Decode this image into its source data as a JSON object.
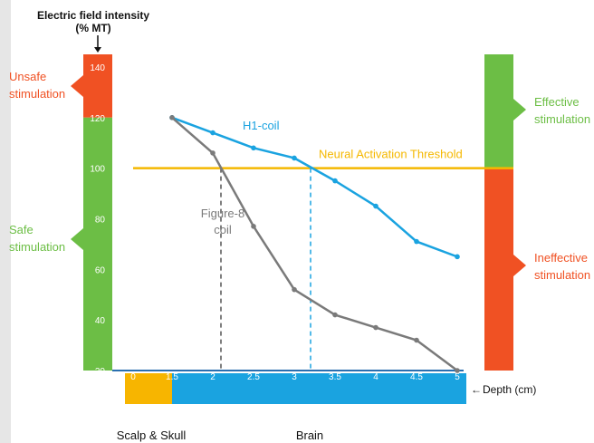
{
  "chart_data": {
    "type": "line",
    "y_axis_title_line1": "Electric field intensity",
    "y_axis_title_line2": "(% MT)",
    "x_axis_label": "Depth (cm)",
    "ylim": [
      20,
      145
    ],
    "y_ticks": [
      20,
      40,
      60,
      80,
      100,
      120,
      140
    ],
    "xlim": [
      0,
      5
    ],
    "x_ticks": [
      "0",
      "1.5",
      "2",
      "2.5",
      "3",
      "3.5",
      "4",
      "4.5",
      "5"
    ],
    "series": [
      {
        "name": "H1-coil",
        "color": "#1aa3e0",
        "x": [
          1.5,
          2,
          2.5,
          3,
          3.5,
          4,
          4.5,
          5
        ],
        "y": [
          120,
          114,
          108,
          104,
          95,
          85,
          71,
          65
        ]
      },
      {
        "name": "Figure-8 coil",
        "color": "#7a7a7a",
        "x": [
          1.5,
          2,
          2.5,
          3,
          3.5,
          4,
          4.5,
          5
        ],
        "y": [
          120,
          106,
          77,
          52,
          42,
          37,
          32,
          20
        ]
      }
    ],
    "threshold": {
      "label": "Neural Activation Threshold",
      "value": 100,
      "color": "#f5b800"
    },
    "crossings": {
      "figure8_depth": 2.1,
      "h1_depth": 3.2
    },
    "figure8_label_line1": "Figure-8",
    "figure8_label_line2": "coil",
    "left_zones": [
      {
        "label_line1": "Unsafe",
        "label_line2": "stimulation",
        "from": 120,
        "to": 145,
        "color": "#f05123"
      },
      {
        "label_line1": "Safe",
        "label_line2": "stimulation",
        "from": 20,
        "to": 120,
        "color": "#6cbe45"
      }
    ],
    "right_zones": [
      {
        "label_line1": "Effective",
        "label_line2": "stimulation",
        "from": 100,
        "to": 145,
        "color": "#6cbe45"
      },
      {
        "label_line1": "Ineffective",
        "label_line2": "stimulation",
        "from": 20,
        "to": 100,
        "color": "#f05123"
      }
    ],
    "depth_regions": [
      {
        "label": "Scalp & Skull",
        "from": 0,
        "to": 1.5,
        "color": "#f7b500"
      },
      {
        "label": "Brain",
        "from": 1.5,
        "to": 5,
        "color": "#1aa3e0"
      }
    ]
  }
}
